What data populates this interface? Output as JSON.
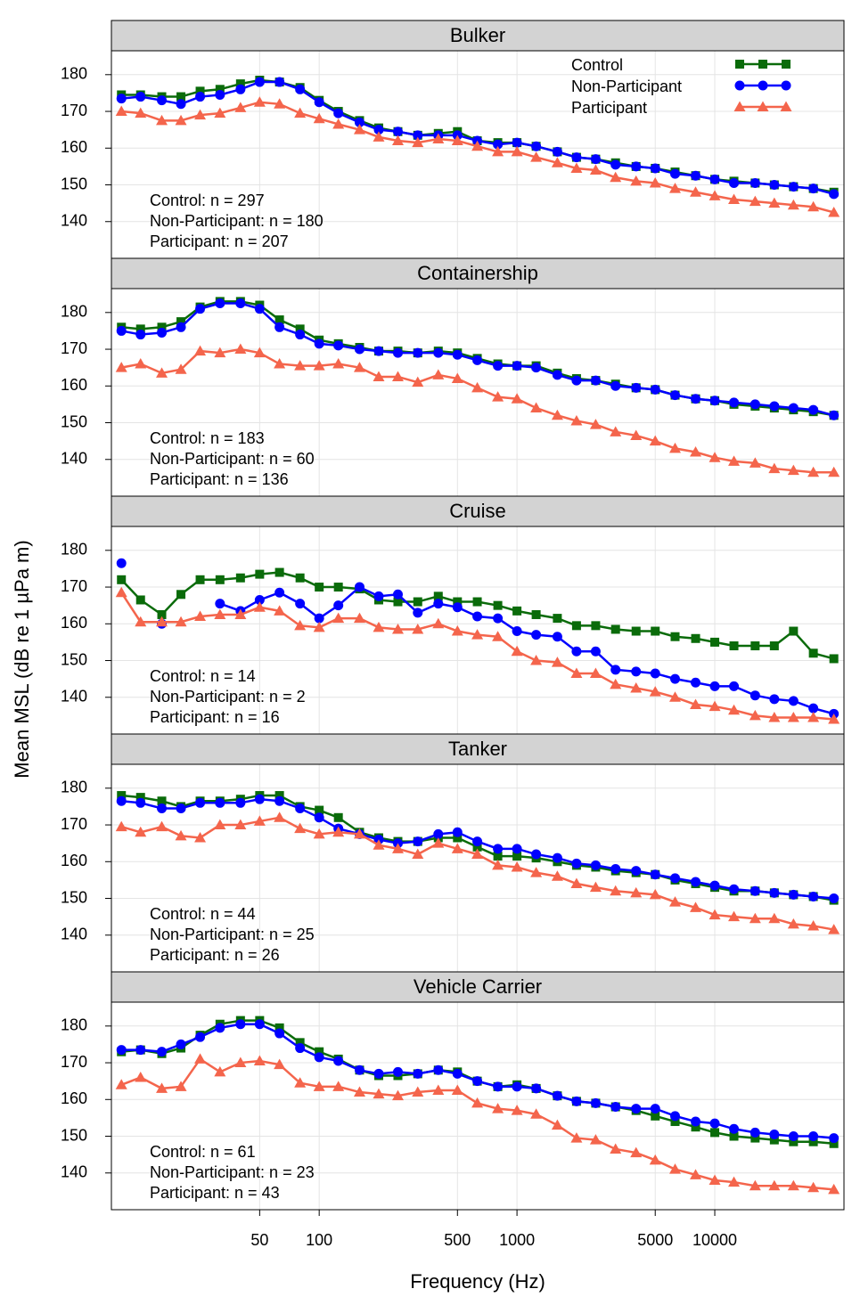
{
  "xlabel": "Frequency (Hz)",
  "ylabel": "Mean MSL (dB re 1 µPa m)",
  "chart_data": [
    {
      "type": "line",
      "title": "Bulker",
      "log_x": true,
      "grid": true,
      "legend": "top-right",
      "x": [
        10,
        12.5,
        16,
        20,
        25,
        31.5,
        40,
        50,
        63,
        80,
        100,
        125,
        160,
        200,
        250,
        315,
        400,
        500,
        630,
        800,
        1000,
        1250,
        1600,
        2000,
        2500,
        3150,
        4000,
        5000,
        6300,
        8000,
        10000,
        12500,
        16000,
        20000,
        25000,
        31500,
        40000
      ],
      "xlim": [
        8.9,
        45000
      ],
      "ylim": [
        130,
        186.5
      ],
      "yticks": [
        140,
        150,
        160,
        170,
        180
      ],
      "series": [
        {
          "name": "Control",
          "color": "#0a6b0a",
          "marker": "square",
          "n_label": "Control: n = 297",
          "values": [
            174.5,
            174.5,
            174,
            174,
            175.5,
            176,
            177.5,
            178.5,
            178,
            176.5,
            173,
            170,
            167.5,
            165.5,
            164.5,
            163.5,
            164,
            164.5,
            162,
            161.5,
            161.5,
            160.5,
            159,
            157.5,
            157,
            156,
            155,
            154.5,
            153.5,
            152.5,
            151.5,
            151,
            150.5,
            150,
            149.5,
            149,
            148
          ]
        },
        {
          "name": "Non-Participant",
          "color": "#0000ff",
          "marker": "circle",
          "n_label": "Non-Participant: n = 180",
          "values": [
            173.5,
            174,
            173,
            172,
            174,
            174.5,
            176,
            178,
            178,
            176,
            172.5,
            169.5,
            167,
            165,
            164.5,
            163.5,
            163.5,
            163.5,
            162,
            161,
            161.5,
            160.5,
            159,
            157.5,
            157,
            155.5,
            155,
            154.5,
            153,
            152.5,
            151.5,
            150.5,
            150.5,
            150,
            149.5,
            149,
            147.5
          ]
        },
        {
          "name": "Participant",
          "color": "#f4654c",
          "marker": "triangle",
          "n_label": "Participant: n = 207",
          "values": [
            170,
            169.5,
            167.5,
            167.5,
            169,
            169.5,
            171,
            172.5,
            172,
            169.5,
            168,
            166.5,
            165,
            163,
            162,
            161.5,
            162.5,
            162,
            160.5,
            159,
            159,
            157.5,
            156,
            154.5,
            154,
            152,
            151,
            150.5,
            149,
            148,
            147,
            146,
            145.5,
            145,
            144.5,
            144,
            142.5
          ]
        }
      ]
    },
    {
      "type": "line",
      "title": "Containership",
      "log_x": true,
      "grid": true,
      "x": [
        10,
        12.5,
        16,
        20,
        25,
        31.5,
        40,
        50,
        63,
        80,
        100,
        125,
        160,
        200,
        250,
        315,
        400,
        500,
        630,
        800,
        1000,
        1250,
        1600,
        2000,
        2500,
        3150,
        4000,
        5000,
        6300,
        8000,
        10000,
        12500,
        16000,
        20000,
        25000,
        31500,
        40000
      ],
      "xlim": [
        8.9,
        45000
      ],
      "ylim": [
        130,
        186.5
      ],
      "yticks": [
        140,
        150,
        160,
        170,
        180
      ],
      "series": [
        {
          "name": "Control",
          "color": "#0a6b0a",
          "marker": "square",
          "n_label": "Control: n = 183",
          "values": [
            176,
            175.5,
            176,
            177.5,
            181.5,
            183,
            183,
            182,
            178,
            175.5,
            172.5,
            171.5,
            170.5,
            169.5,
            169.5,
            169,
            169.5,
            169,
            167.5,
            166,
            165.5,
            165.5,
            163.5,
            162,
            161.5,
            160.5,
            159.5,
            159,
            157.5,
            156.5,
            156,
            155,
            154.5,
            154,
            153.5,
            153,
            152
          ]
        },
        {
          "name": "Non-Participant",
          "color": "#0000ff",
          "marker": "circle",
          "n_label": "Non-Participant: n = 60",
          "values": [
            175,
            174,
            174.5,
            176,
            181,
            182.5,
            182.5,
            181,
            176,
            174,
            171.5,
            171,
            170,
            169.5,
            169,
            169,
            169,
            168.5,
            167,
            165.5,
            165.5,
            165,
            163,
            161.5,
            161.5,
            160,
            159.5,
            159,
            157.5,
            156.5,
            156,
            155.5,
            155,
            154.5,
            154,
            153.5,
            152
          ]
        },
        {
          "name": "Participant",
          "color": "#f4654c",
          "marker": "triangle",
          "n_label": "Participant: n = 136",
          "values": [
            165,
            166,
            163.5,
            164.5,
            169.5,
            169,
            170,
            169,
            166,
            165.5,
            165.5,
            166,
            165,
            162.5,
            162.5,
            161,
            163,
            162,
            159.5,
            157,
            156.5,
            154,
            152,
            150.5,
            149.5,
            147.5,
            146.5,
            145,
            143,
            142,
            140.5,
            139.5,
            139,
            137.5,
            137,
            136.5,
            136.5
          ]
        }
      ]
    },
    {
      "type": "line",
      "title": "Cruise",
      "log_x": true,
      "grid": true,
      "x": [
        10,
        12.5,
        16,
        20,
        25,
        31.5,
        40,
        50,
        63,
        80,
        100,
        125,
        160,
        200,
        250,
        315,
        400,
        500,
        630,
        800,
        1000,
        1250,
        1600,
        2000,
        2500,
        3150,
        4000,
        5000,
        6300,
        8000,
        10000,
        12500,
        16000,
        20000,
        25000,
        31500,
        40000
      ],
      "xlim": [
        8.9,
        45000
      ],
      "ylim": [
        130,
        186.5
      ],
      "yticks": [
        140,
        150,
        160,
        170,
        180
      ],
      "series": [
        {
          "name": "Control",
          "color": "#0a6b0a",
          "marker": "square",
          "n_label": "Control: n = 14",
          "values": [
            172,
            166.5,
            162.5,
            168,
            172,
            172,
            172.5,
            173.5,
            174,
            172.5,
            170,
            170,
            169.5,
            166.5,
            166,
            166,
            167.5,
            166,
            166,
            165,
            163.5,
            162.5,
            161.5,
            159.5,
            159.5,
            158.5,
            158,
            158,
            156.5,
            156,
            155,
            154,
            154,
            154,
            158,
            152,
            150.5
          ]
        },
        {
          "name": "Non-Participant",
          "color": "#0000ff",
          "marker": "circle",
          "n_label": "Non-Participant: n = 2",
          "values": [
            176.5,
            null,
            160,
            null,
            null,
            165.5,
            163.5,
            166.5,
            168.5,
            165.5,
            161.5,
            165,
            170,
            167.5,
            168,
            163,
            165.5,
            164.5,
            162,
            161.5,
            158,
            157,
            156.5,
            152.5,
            152.5,
            147.5,
            147,
            146.5,
            145,
            144,
            143,
            143,
            140.5,
            139.5,
            139,
            137,
            135.5
          ]
        },
        {
          "name": "Participant",
          "color": "#f4654c",
          "marker": "triangle",
          "n_label": "Participant: n = 16",
          "values": [
            168.5,
            160.5,
            160.5,
            160.5,
            162,
            162.5,
            162.5,
            164.5,
            163.5,
            159.5,
            159,
            161.5,
            161.5,
            159,
            158.5,
            158.5,
            160,
            158,
            157,
            156.5,
            152.5,
            150,
            149.5,
            146.5,
            146.5,
            143.5,
            142.5,
            141.5,
            140,
            138,
            137.5,
            136.5,
            135,
            134.5,
            134.5,
            134.5,
            134
          ]
        }
      ]
    },
    {
      "type": "line",
      "title": "Tanker",
      "log_x": true,
      "grid": true,
      "x": [
        10,
        12.5,
        16,
        20,
        25,
        31.5,
        40,
        50,
        63,
        80,
        100,
        125,
        160,
        200,
        250,
        315,
        400,
        500,
        630,
        800,
        1000,
        1250,
        1600,
        2000,
        2500,
        3150,
        4000,
        5000,
        6300,
        8000,
        10000,
        12500,
        16000,
        20000,
        25000,
        31500,
        40000
      ],
      "xlim": [
        8.9,
        45000
      ],
      "ylim": [
        130,
        186.5
      ],
      "yticks": [
        140,
        150,
        160,
        170,
        180
      ],
      "series": [
        {
          "name": "Control",
          "color": "#0a6b0a",
          "marker": "square",
          "n_label": "Control: n = 44",
          "values": [
            178,
            177.5,
            176.5,
            175,
            176.5,
            176.5,
            177,
            178,
            178,
            175,
            174,
            172,
            168,
            166.5,
            165.5,
            165.5,
            166.5,
            166.5,
            164,
            161.5,
            161.5,
            161,
            160,
            159,
            158.5,
            157.5,
            157,
            156.5,
            155,
            154,
            153,
            152,
            152,
            151.5,
            151,
            150.5,
            149.5
          ]
        },
        {
          "name": "Non-Participant",
          "color": "#0000ff",
          "marker": "circle",
          "n_label": "Non-Participant: n = 25",
          "values": [
            176.5,
            176,
            174.5,
            174.5,
            176,
            176,
            176,
            177,
            176.5,
            174.5,
            172,
            169,
            167.5,
            166,
            165,
            165.5,
            167.5,
            168,
            165.5,
            163.5,
            163.5,
            162,
            161,
            159.5,
            159,
            158,
            157.5,
            156.5,
            155.5,
            154.5,
            153.5,
            152.5,
            152,
            151.5,
            151,
            150.5,
            150
          ]
        },
        {
          "name": "Participant",
          "color": "#f4654c",
          "marker": "triangle",
          "n_label": "Participant: n = 26",
          "values": [
            169.5,
            168,
            169.5,
            167,
            166.5,
            170,
            170,
            171,
            172,
            169,
            167.5,
            168,
            167.5,
            164.5,
            163.5,
            162,
            165,
            163.5,
            162,
            159,
            158.5,
            157,
            156,
            154,
            153,
            152,
            151.5,
            151,
            149,
            147.5,
            145.5,
            145,
            144.5,
            144.5,
            143,
            142.5,
            141.5
          ]
        }
      ]
    },
    {
      "type": "line",
      "title": "Vehicle Carrier",
      "log_x": true,
      "grid": true,
      "x": [
        10,
        12.5,
        16,
        20,
        25,
        31.5,
        40,
        50,
        63,
        80,
        100,
        125,
        160,
        200,
        250,
        315,
        400,
        500,
        630,
        800,
        1000,
        1250,
        1600,
        2000,
        2500,
        3150,
        4000,
        5000,
        6300,
        8000,
        10000,
        12500,
        16000,
        20000,
        25000,
        31500,
        40000
      ],
      "xlim": [
        8.9,
        45000
      ],
      "ylim": [
        130,
        186.5
      ],
      "yticks": [
        140,
        150,
        160,
        170,
        180
      ],
      "xticks": [
        50,
        100,
        500,
        1000,
        5000,
        10000
      ],
      "series": [
        {
          "name": "Control",
          "color": "#0a6b0a",
          "marker": "square",
          "n_label": "Control: n = 61",
          "values": [
            173,
            173.5,
            172.5,
            174,
            177.5,
            180.5,
            181.5,
            181.5,
            179.5,
            175.5,
            173,
            171,
            168,
            166.5,
            166.5,
            167,
            168,
            167.5,
            165,
            163.5,
            164,
            163,
            161,
            159.5,
            159,
            158,
            157,
            155.5,
            154,
            152.5,
            151,
            150,
            149.5,
            149,
            148.5,
            148.5,
            148
          ]
        },
        {
          "name": "Non-Participant",
          "color": "#0000ff",
          "marker": "circle",
          "n_label": "Non-Participant: n = 23",
          "values": [
            173.5,
            173.5,
            173,
            175,
            177,
            179.5,
            180.5,
            180.5,
            178,
            174,
            171.5,
            170.5,
            168,
            167,
            167.5,
            167,
            168,
            167,
            165,
            163.5,
            163.5,
            163,
            161,
            159.5,
            159,
            158,
            157.5,
            157.5,
            155.5,
            154,
            153.5,
            152,
            151,
            150.5,
            150,
            150,
            149.5
          ]
        },
        {
          "name": "Participant",
          "color": "#f4654c",
          "marker": "triangle",
          "n_label": "Participant: n = 43",
          "values": [
            164,
            166,
            163,
            163.5,
            171,
            167.5,
            170,
            170.5,
            169.5,
            164.5,
            163.5,
            163.5,
            162,
            161.5,
            161,
            162,
            162.5,
            162.5,
            159,
            157.5,
            157,
            156,
            153,
            149.5,
            149,
            146.5,
            145.5,
            143.5,
            141,
            139.5,
            138,
            137.5,
            136.5,
            136.5,
            136.5,
            136,
            135.5
          ]
        }
      ]
    }
  ]
}
